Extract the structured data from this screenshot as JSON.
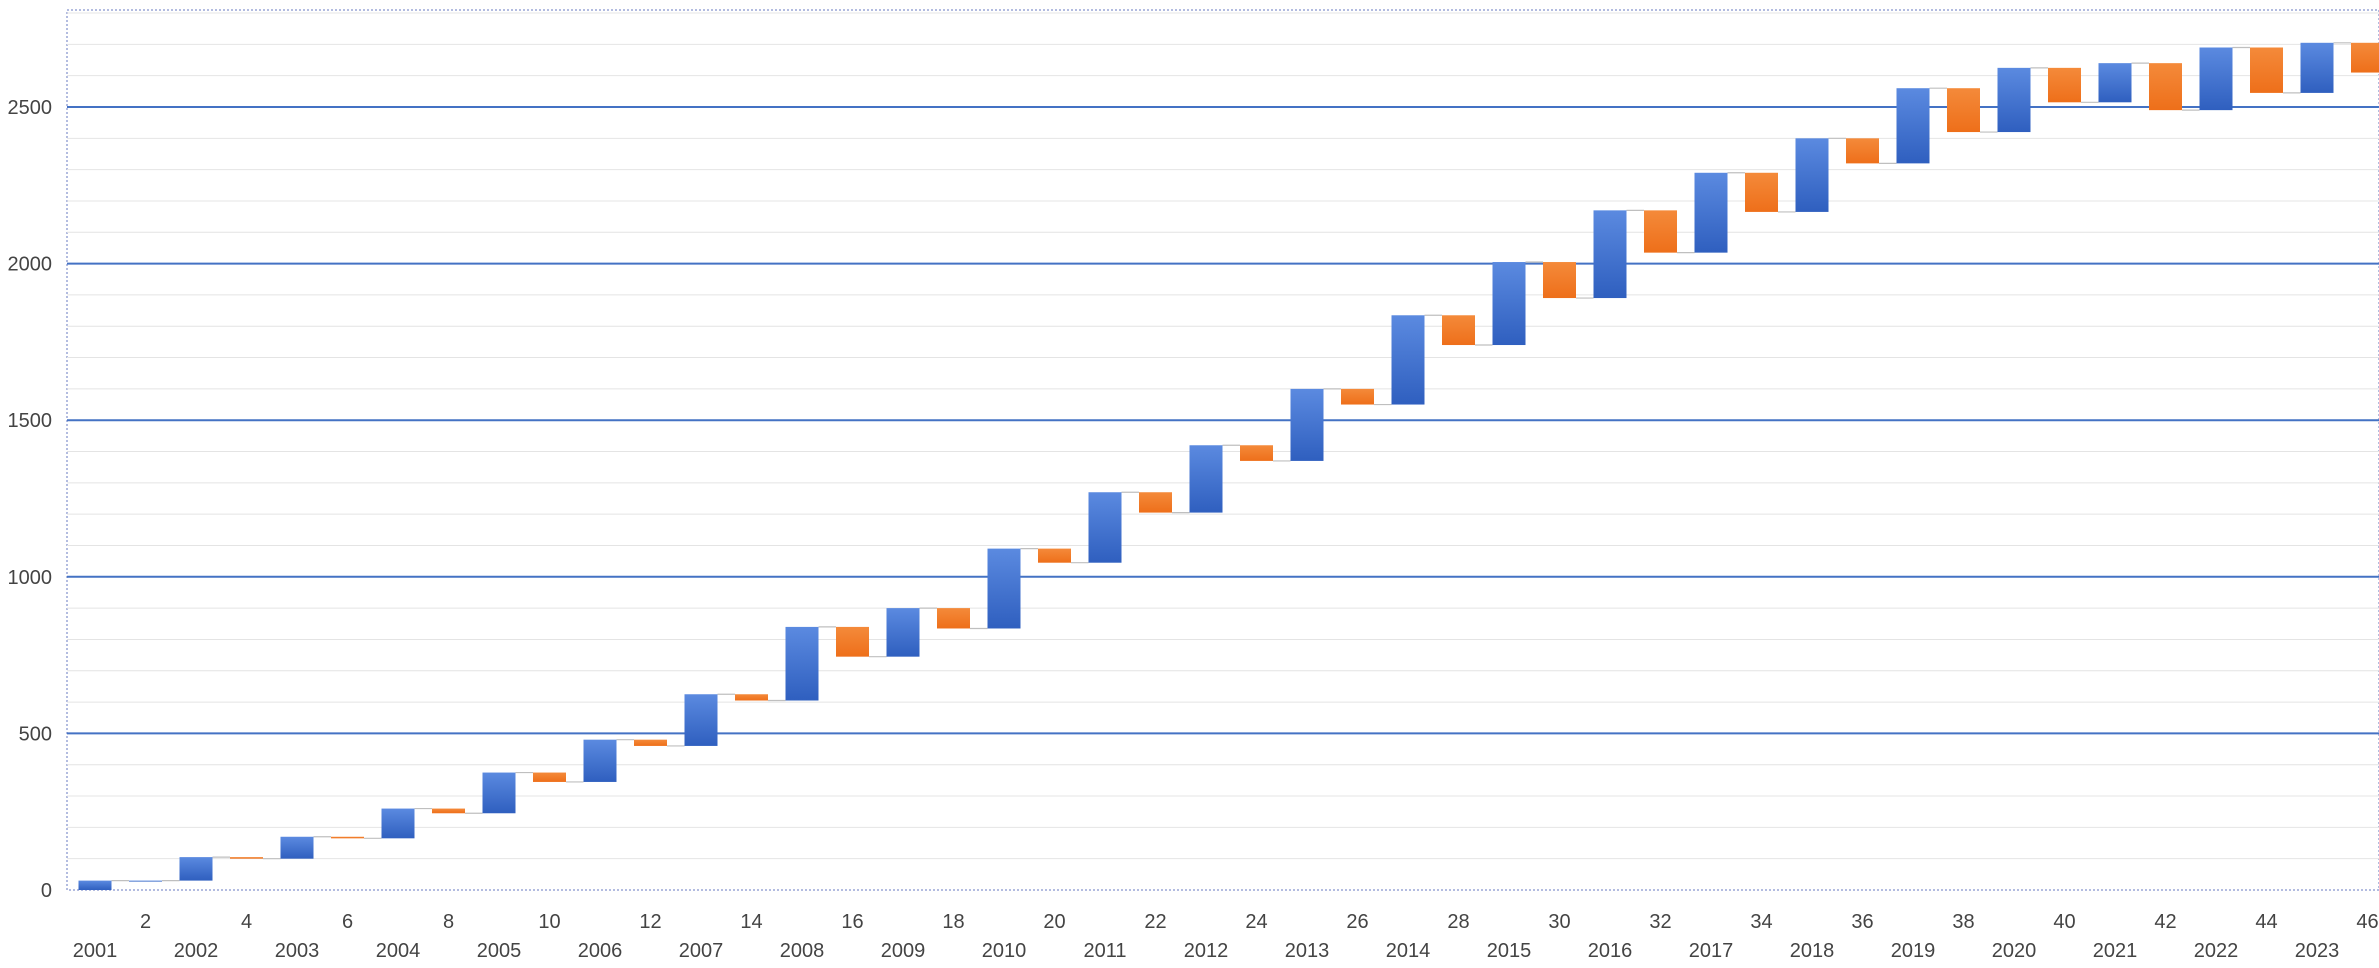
{
  "chart_data": {
    "type": "waterfall",
    "title": "",
    "xlabel": "",
    "ylabel": "",
    "ylim": [
      0,
      2800
    ],
    "yticks": [
      0,
      500,
      1000,
      1500,
      2000,
      2500
    ],
    "ytick_labels": [
      "0",
      "500",
      "1000",
      "1500",
      "2000",
      "2500"
    ],
    "xlim": [
      1,
      47
    ],
    "xticks": [
      2,
      4,
      6,
      8,
      10,
      12,
      14,
      16,
      18,
      20,
      22,
      24,
      26,
      28,
      30,
      32,
      34,
      36,
      38,
      40,
      42,
      44,
      46
    ],
    "xtick_labels": [
      "2",
      "4",
      "6",
      "8",
      "10",
      "12",
      "14",
      "16",
      "18",
      "20",
      "22",
      "24",
      "26",
      "28",
      "30",
      "32",
      "34",
      "36",
      "38",
      "40",
      "42",
      "44",
      "46"
    ],
    "years": [
      "2001",
      "2002",
      "2003",
      "2004",
      "2005",
      "2006",
      "2007",
      "2008",
      "2009",
      "2010",
      "2011",
      "2012",
      "2013",
      "2014",
      "2015",
      "2016",
      "2017",
      "2018",
      "2019",
      "2020",
      "2021",
      "2022",
      "2023"
    ],
    "colors": {
      "increase": "#3a6bc9",
      "decrease": "#f07a26",
      "gridline_major": "#4472c4",
      "gridline_minor": "#e4e4e4",
      "connector": "#bfbfbf"
    },
    "series": [
      {
        "index": [
          1,
          2,
          3,
          4,
          5,
          6,
          7,
          8,
          9,
          10,
          11,
          12,
          13,
          14,
          15,
          16,
          17,
          18,
          19,
          20,
          21,
          22,
          23,
          24,
          25,
          26,
          27,
          28,
          29,
          30,
          31,
          32,
          33,
          34,
          35,
          36,
          37,
          38,
          39,
          40,
          41,
          42,
          43,
          44,
          45,
          46,
          47
        ],
        "start": [
          0,
          30,
          30,
          105,
          100,
          170,
          165,
          260,
          245,
          375,
          345,
          480,
          460,
          625,
          605,
          840,
          745,
          900,
          835,
          1090,
          1045,
          1270,
          1205,
          1420,
          1370,
          1600,
          1550,
          1835,
          1740,
          2005,
          1890,
          2170,
          2035,
          2290,
          2165,
          2400,
          2320,
          2560,
          2420,
          2625,
          2515,
          2640,
          2490,
          2690,
          2545,
          2705,
          2610
        ],
        "end": [
          30,
          30,
          105,
          100,
          170,
          165,
          260,
          245,
          375,
          345,
          480,
          460,
          625,
          605,
          840,
          745,
          900,
          835,
          1090,
          1045,
          1270,
          1205,
          1420,
          1370,
          1600,
          1550,
          1835,
          1740,
          2005,
          1890,
          2170,
          2035,
          2290,
          2165,
          2400,
          2320,
          2560,
          2420,
          2625,
          2515,
          2640,
          2490,
          2690,
          2545,
          2705,
          2610,
          2700
        ]
      }
    ]
  }
}
